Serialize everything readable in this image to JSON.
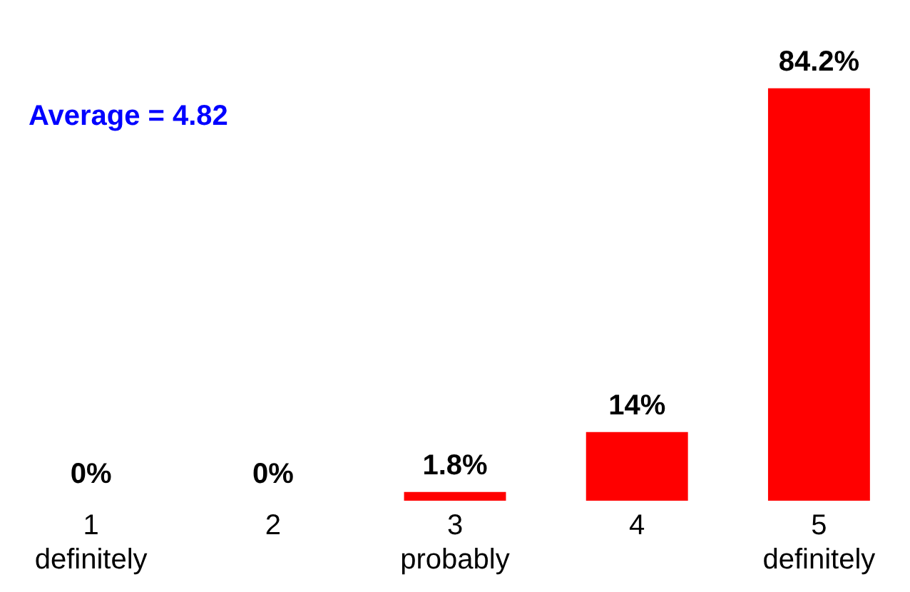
{
  "chart_data": {
    "type": "bar",
    "categories": [
      "1\ndefinitely",
      "2",
      "3\nprobably",
      "4",
      "5\ndefinitely"
    ],
    "values": [
      0,
      0,
      1.8,
      14,
      84.2
    ],
    "value_labels": [
      "0%",
      "0%",
      "1.8%",
      "14%",
      "84.2%"
    ],
    "color": "#ff0000",
    "annotations": [
      "Average = 4.82"
    ],
    "grid": false,
    "legend": false
  }
}
